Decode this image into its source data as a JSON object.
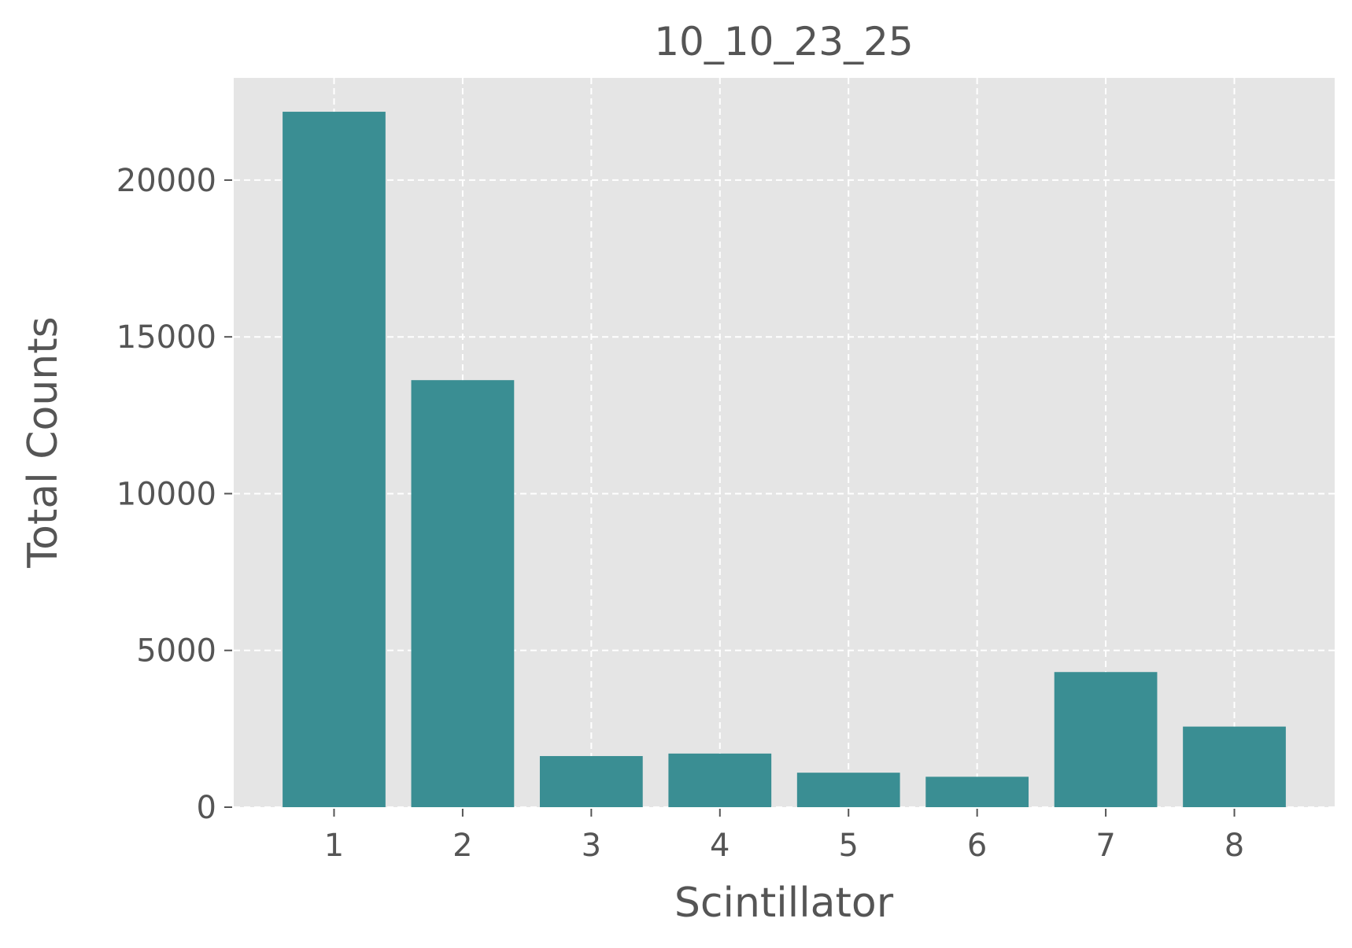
{
  "chart_data": {
    "type": "bar",
    "title": "10_10_23_25",
    "xlabel": "Scintillator",
    "ylabel": "Total Counts",
    "categories": [
      "1",
      "2",
      "3",
      "4",
      "5",
      "6",
      "7",
      "8"
    ],
    "values": [
      22180,
      13620,
      1630,
      1710,
      1100,
      970,
      4310,
      2570
    ],
    "yticks": [
      0,
      5000,
      10000,
      15000,
      20000
    ],
    "ytick_labels": [
      "0",
      "5000",
      "10000",
      "15000",
      "20000"
    ],
    "ylim": [
      0,
      23260
    ],
    "xlim": [
      0.22,
      8.78
    ],
    "grid": true,
    "colors": {
      "bar": "#3a8e93",
      "background": "#e5e5e5",
      "grid": "#ffffff",
      "text": "#555555"
    }
  }
}
